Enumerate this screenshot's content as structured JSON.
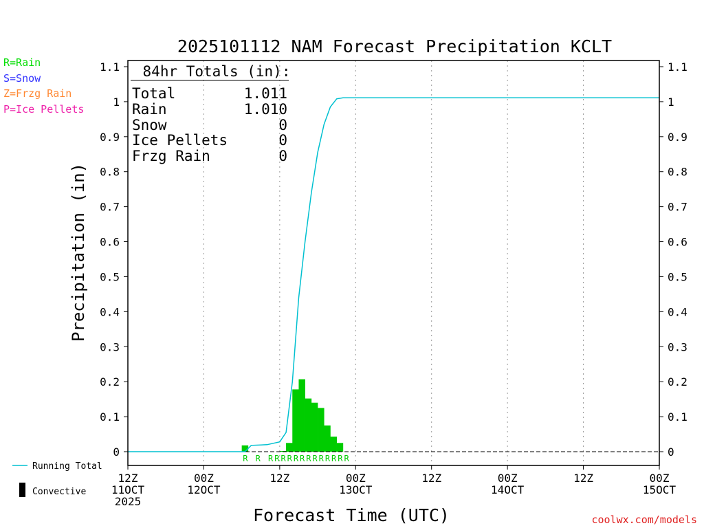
{
  "chart_data": {
    "type": "bar",
    "title": "2025101112 NAM Forecast Precipitation KCLT",
    "xlabel": "Forecast Time (UTC)",
    "ylabel": "Precipitation (in)",
    "ylim": [
      0,
      1.1
    ],
    "y_ticks": [
      "0",
      "0.1",
      "0.2",
      "0.3",
      "0.4",
      "0.5",
      "0.6",
      "0.7",
      "0.8",
      "0.9",
      "1",
      "1.1"
    ],
    "x_range_hours": [
      0,
      84
    ],
    "x_ticks": [
      {
        "hour": 0,
        "line1": "12Z",
        "line2": "11OCT",
        "line3": "2025"
      },
      {
        "hour": 12,
        "line1": "00Z",
        "line2": "12OCT",
        "line3": ""
      },
      {
        "hour": 24,
        "line1": "12Z",
        "line2": "",
        "line3": ""
      },
      {
        "hour": 36,
        "line1": "00Z",
        "line2": "13OCT",
        "line3": ""
      },
      {
        "hour": 48,
        "line1": "12Z",
        "line2": "",
        "line3": ""
      },
      {
        "hour": 60,
        "line1": "00Z",
        "line2": "14OCT",
        "line3": ""
      },
      {
        "hour": 72,
        "line1": "12Z",
        "line2": "",
        "line3": ""
      },
      {
        "hour": 84,
        "line1": "00Z",
        "line2": "15OCT",
        "line3": ""
      }
    ],
    "bar_width_hours": 1,
    "bars": [
      {
        "hour": 19,
        "value": 0.018
      },
      {
        "hour": 25,
        "value": 0.002
      },
      {
        "hour": 26,
        "value": 0.025
      },
      {
        "hour": 27,
        "value": 0.178
      },
      {
        "hour": 28,
        "value": 0.207
      },
      {
        "hour": 29,
        "value": 0.152
      },
      {
        "hour": 30,
        "value": 0.14
      },
      {
        "hour": 31,
        "value": 0.125
      },
      {
        "hour": 32,
        "value": 0.075
      },
      {
        "hour": 33,
        "value": 0.043
      },
      {
        "hour": 34,
        "value": 0.025
      }
    ],
    "running_total": [
      {
        "hour": 0,
        "value": 0
      },
      {
        "hour": 18.5,
        "value": 0
      },
      {
        "hour": 19.5,
        "value": 0.018
      },
      {
        "hour": 22,
        "value": 0.02
      },
      {
        "hour": 24,
        "value": 0.028
      },
      {
        "hour": 25,
        "value": 0.055
      },
      {
        "hour": 26,
        "value": 0.2
      },
      {
        "hour": 27,
        "value": 0.44
      },
      {
        "hour": 28,
        "value": 0.6
      },
      {
        "hour": 29,
        "value": 0.74
      },
      {
        "hour": 30,
        "value": 0.855
      },
      {
        "hour": 31,
        "value": 0.935
      },
      {
        "hour": 32,
        "value": 0.985
      },
      {
        "hour": 33,
        "value": 1.008
      },
      {
        "hour": 34,
        "value": 1.011
      },
      {
        "hour": 84,
        "value": 1.011
      }
    ],
    "ptype_marks": [
      {
        "hour": 19,
        "label": "R"
      },
      {
        "hour": 21,
        "label": "R"
      },
      {
        "hour": 23,
        "label": "R"
      },
      {
        "hour": 24,
        "label": "R"
      },
      {
        "hour": 25,
        "label": "R"
      },
      {
        "hour": 26,
        "label": "R"
      },
      {
        "hour": 27,
        "label": "R"
      },
      {
        "hour": 28,
        "label": "R"
      },
      {
        "hour": 29,
        "label": "R"
      },
      {
        "hour": 30,
        "label": "R"
      },
      {
        "hour": 31,
        "label": "R"
      },
      {
        "hour": 32,
        "label": "R"
      },
      {
        "hour": 33,
        "label": "R"
      },
      {
        "hour": 34,
        "label": "R"
      },
      {
        "hour": 35,
        "label": "R"
      }
    ],
    "totals_box": {
      "header": "84hr Totals (in):",
      "rows": [
        {
          "label": "Total",
          "value": "1.011"
        },
        {
          "label": "Rain",
          "value": "1.010"
        },
        {
          "label": "Snow",
          "value": "0"
        },
        {
          "label": "Ice Pellets",
          "value": "0"
        },
        {
          "label": "Frzg Rain",
          "value": "0"
        }
      ]
    },
    "ptype_legend": [
      {
        "text": "R=Rain",
        "color": "#00dd00"
      },
      {
        "text": "S=Snow",
        "color": "#3333ff"
      },
      {
        "text": "Z=Frzg Rain",
        "color": "#ff8833"
      },
      {
        "text": "P=Ice Pellets",
        "color": "#ee22aa"
      }
    ],
    "series_legend": [
      {
        "label": "Running Total",
        "style": "line",
        "color": "#00c0d0"
      },
      {
        "label": "Convective",
        "style": "bar",
        "color": "#000000"
      }
    ],
    "credit": "coolwx.com/models",
    "colors": {
      "bars": "#00cc00",
      "running_total": "#00c0d0",
      "ptype_rain": "#00cc00",
      "credit": "#e02020",
      "gridline": "#999999"
    }
  }
}
